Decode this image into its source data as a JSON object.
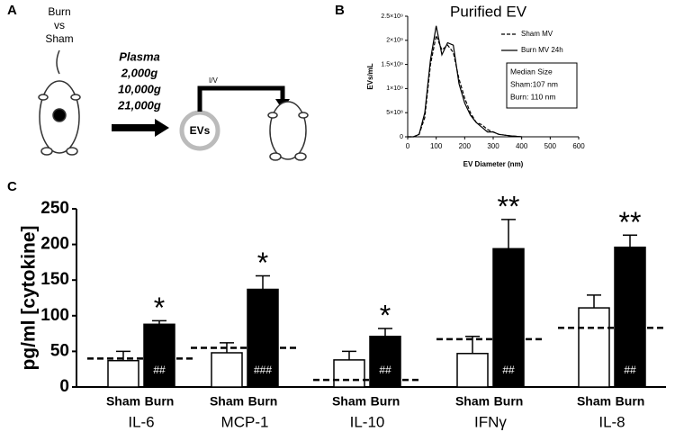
{
  "panel_labels": [
    "A",
    "B",
    "C"
  ],
  "diagram": {
    "group_label": [
      "Burn",
      "vs",
      "Sham"
    ],
    "protocol_title": "Plasma",
    "spins": [
      "2,000g",
      "10,000g",
      "21,000g"
    ],
    "route": "I/V",
    "vesicle": "EVs"
  },
  "chart_data": [
    {
      "type": "line",
      "title": "Purified EV",
      "x_label": "EV Diameter (nm)",
      "y_label": "EVs/mL",
      "x": [
        0,
        20,
        40,
        60,
        80,
        100,
        120,
        140,
        160,
        180,
        200,
        220,
        240,
        260,
        280,
        300,
        320,
        360,
        400
      ],
      "series": [
        {
          "name": "Sham MV",
          "color": "#000000",
          "dash": true,
          "values": [
            0,
            0,
            50000000,
            400000000,
            1500000000,
            2100000000,
            1800000000,
            1900000000,
            1750000000,
            1200000000,
            800000000,
            500000000,
            300000000,
            250000000,
            150000000,
            100000000,
            50000000,
            20000000,
            0
          ]
        },
        {
          "name": "Burn MV 24h",
          "color": "#000000",
          "dash": false,
          "values": [
            0,
            0,
            50000000,
            500000000,
            1600000000,
            2300000000,
            1700000000,
            1950000000,
            1900000000,
            1100000000,
            700000000,
            450000000,
            300000000,
            200000000,
            100000000,
            100000000,
            50000000,
            20000000,
            0
          ]
        }
      ],
      "xlim": [
        0,
        600
      ],
      "xticks": [
        0,
        100,
        200,
        300,
        400,
        500,
        600
      ],
      "ylim": [
        0,
        2500000000
      ],
      "yticks": [
        0,
        {
          "value": 500000000,
          "label": "5×10⁸"
        },
        {
          "value": 1000000000,
          "label": "1×10⁹"
        },
        {
          "value": 1500000000,
          "label": "1.5×10⁹"
        },
        {
          "value": 2000000000,
          "label": "2×10⁹"
        },
        {
          "value": 2500000000,
          "label": "2.5×10⁹"
        }
      ],
      "legend": "top-right",
      "annotation": [
        "Median Size",
        "Sham:107 nm",
        "Burn: 110 nm"
      ]
    },
    {
      "type": "bar",
      "y_label": "pg/ml [cytokine]",
      "categories": [
        "IL-6",
        "MCP-1",
        "IL-10",
        "IFNγ",
        "IL-8"
      ],
      "series": [
        {
          "name": "Sham",
          "color": "#ffffff",
          "values": [
            37,
            48,
            38,
            47,
            111
          ],
          "errors": [
            13,
            14,
            12,
            24,
            18
          ]
        },
        {
          "name": "Burn",
          "color": "#000000",
          "values": [
            88,
            137,
            71,
            194,
            196
          ],
          "errors": [
            5,
            19,
            11,
            41,
            17
          ],
          "significance": [
            "*",
            "*",
            "*",
            "**",
            "**"
          ],
          "inner_labels": [
            "##",
            "###",
            "##",
            "##",
            "##"
          ]
        }
      ],
      "reference_values": [
        40,
        55,
        10,
        67,
        83
      ],
      "ylim": [
        0,
        250
      ],
      "yticks": [
        0,
        50,
        100,
        150,
        200,
        250
      ]
    }
  ]
}
